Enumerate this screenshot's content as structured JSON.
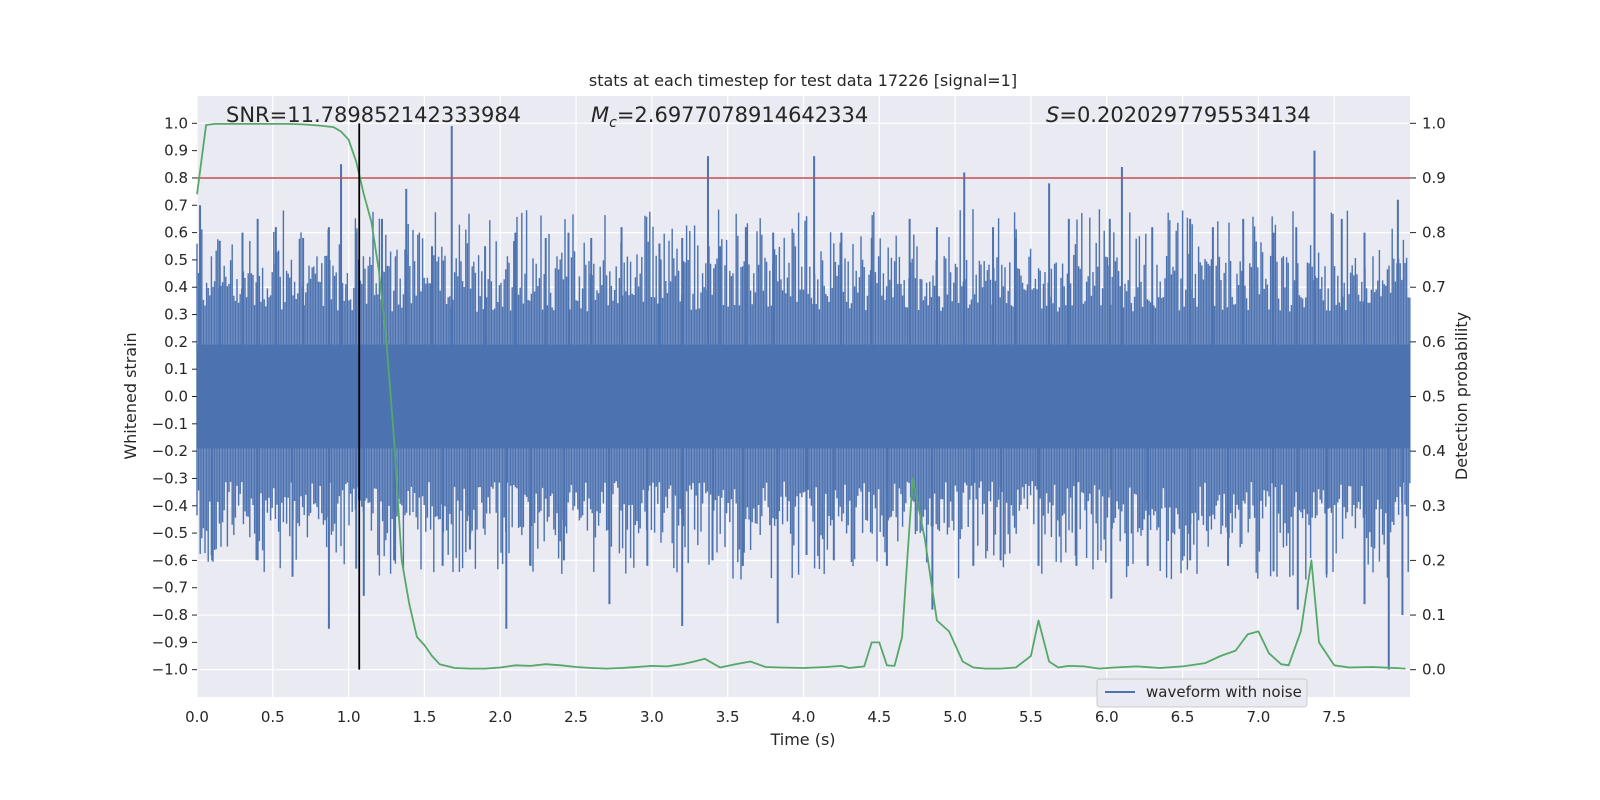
{
  "chart_data": {
    "type": "line",
    "title": "stats at each timestep for test data 17226 [signal=1]",
    "xlabel": "Time (s)",
    "ylabel": "Whitened strain",
    "ylabel_right": "Detection probability",
    "xlim": [
      0.0,
      8.0
    ],
    "ylim": [
      -1.1,
      1.1
    ],
    "ylim_right": [
      -0.05,
      1.05
    ],
    "x_ticks": [
      0.0,
      0.5,
      1.0,
      1.5,
      2.0,
      2.5,
      3.0,
      3.5,
      4.0,
      4.5,
      5.0,
      5.5,
      6.0,
      6.5,
      7.0,
      7.5
    ],
    "y_ticks": [
      -1.0,
      -0.9,
      -0.8,
      -0.7,
      -0.6,
      -0.5,
      -0.4,
      -0.3,
      -0.2,
      -0.1,
      0.0,
      0.1,
      0.2,
      0.3,
      0.4,
      0.5,
      0.6,
      0.7,
      0.8,
      0.9,
      1.0
    ],
    "y_ticks_right": [
      0.0,
      0.1,
      0.2,
      0.3,
      0.4,
      0.5,
      0.6,
      0.7,
      0.8,
      0.9,
      1.0
    ],
    "x_tick_labels": [
      "0.0",
      "0.5",
      "1.0",
      "1.5",
      "2.0",
      "2.5",
      "3.0",
      "3.5",
      "4.0",
      "4.5",
      "5.0",
      "5.5",
      "6.0",
      "6.5",
      "7.0",
      "7.5"
    ],
    "y_tick_labels": [
      "−1.0",
      "−0.9",
      "−0.8",
      "−0.7",
      "−0.6",
      "−0.5",
      "−0.4",
      "−0.3",
      "−0.2",
      "−0.1",
      "0.0",
      "0.1",
      "0.2",
      "0.3",
      "0.4",
      "0.5",
      "0.6",
      "0.7",
      "0.8",
      "0.9",
      "1.0"
    ],
    "y_tick_labels_right": [
      "0.0",
      "0.1",
      "0.2",
      "0.3",
      "0.4",
      "0.5",
      "0.6",
      "0.7",
      "0.8",
      "0.9",
      "1.0"
    ],
    "grid": true,
    "legend_position": "bottom-right",
    "annotations": {
      "snr": "SNR=11.789852142333984",
      "mc_prefix": "M",
      "mc_sub": "c",
      "mc_value": "=2.6977078914642334",
      "s_prefix": "S",
      "s_value": "=0.2020297795534134"
    },
    "waveform": {
      "name": "waveform with noise",
      "color": "#4c72b0",
      "band_upper": 0.19,
      "band_lower": -0.19,
      "peaks_upper": [
        [
          0.02,
          0.7
        ],
        [
          0.15,
          0.57
        ],
        [
          0.3,
          0.6
        ],
        [
          0.4,
          0.65
        ],
        [
          0.52,
          0.62
        ],
        [
          0.7,
          0.58
        ],
        [
          0.87,
          0.62
        ],
        [
          0.95,
          0.85
        ],
        [
          1.05,
          0.6
        ],
        [
          1.22,
          0.65
        ],
        [
          1.38,
          0.76
        ],
        [
          1.55,
          0.55
        ],
        [
          1.68,
          0.99
        ],
        [
          1.9,
          0.55
        ],
        [
          2.1,
          0.6
        ],
        [
          2.3,
          0.58
        ],
        [
          2.45,
          0.6
        ],
        [
          2.6,
          0.58
        ],
        [
          2.8,
          0.62
        ],
        [
          3.05,
          0.56
        ],
        [
          3.2,
          0.58
        ],
        [
          3.37,
          0.88
        ],
        [
          3.45,
          0.55
        ],
        [
          3.62,
          0.62
        ],
        [
          3.8,
          0.6
        ],
        [
          4.07,
          0.88
        ],
        [
          4.25,
          0.6
        ],
        [
          4.45,
          0.58
        ],
        [
          4.7,
          0.65
        ],
        [
          4.88,
          0.62
        ],
        [
          5.06,
          0.82
        ],
        [
          5.25,
          0.62
        ],
        [
          5.4,
          0.58
        ],
        [
          5.62,
          0.78
        ],
        [
          5.75,
          0.65
        ],
        [
          6.02,
          0.65
        ],
        [
          6.1,
          0.84
        ],
        [
          6.3,
          0.62
        ],
        [
          6.55,
          0.65
        ],
        [
          6.7,
          0.62
        ],
        [
          6.9,
          0.65
        ],
        [
          7.1,
          0.6
        ],
        [
          7.25,
          0.62
        ],
        [
          7.37,
          0.9
        ],
        [
          7.55,
          0.65
        ],
        [
          7.7,
          0.6
        ],
        [
          7.92,
          0.72
        ]
      ],
      "peaks_lower": [
        [
          0.1,
          -0.6
        ],
        [
          0.4,
          -0.6
        ],
        [
          0.63,
          -0.66
        ],
        [
          0.87,
          -0.85
        ],
        [
          1.05,
          -0.63
        ],
        [
          1.1,
          -0.73
        ],
        [
          1.3,
          -0.6
        ],
        [
          1.62,
          -0.62
        ],
        [
          1.8,
          -0.56
        ],
        [
          2.04,
          -0.85
        ],
        [
          2.2,
          -0.62
        ],
        [
          2.42,
          -0.6
        ],
        [
          2.72,
          -0.76
        ],
        [
          2.97,
          -0.62
        ],
        [
          3.2,
          -0.84
        ],
        [
          3.4,
          -0.6
        ],
        [
          3.6,
          -0.62
        ],
        [
          3.83,
          -0.83
        ],
        [
          4.02,
          -0.58
        ],
        [
          4.2,
          -0.6
        ],
        [
          4.55,
          -0.62
        ],
        [
          4.85,
          -0.78
        ],
        [
          5.12,
          -0.62
        ],
        [
          5.3,
          -0.6
        ],
        [
          5.55,
          -0.62
        ],
        [
          5.8,
          -0.62
        ],
        [
          6.03,
          -0.74
        ],
        [
          6.27,
          -0.62
        ],
        [
          6.55,
          -0.6
        ],
        [
          6.8,
          -0.62
        ],
        [
          7.1,
          -0.64
        ],
        [
          7.26,
          -0.78
        ],
        [
          7.45,
          -0.65
        ],
        [
          7.7,
          -0.76
        ],
        [
          7.86,
          -1.0
        ],
        [
          7.95,
          -0.8
        ]
      ]
    },
    "probability": {
      "color": "#55a868",
      "x": [
        0.0,
        0.06,
        0.12,
        0.2,
        0.3,
        0.4,
        0.5,
        0.6,
        0.7,
        0.8,
        0.9,
        0.95,
        1.0,
        1.05,
        1.1,
        1.15,
        1.2,
        1.25,
        1.3,
        1.35,
        1.4,
        1.45,
        1.5,
        1.55,
        1.6,
        1.7,
        1.8,
        1.9,
        2.0,
        2.1,
        2.2,
        2.3,
        2.4,
        2.5,
        2.6,
        2.7,
        2.8,
        2.9,
        3.0,
        3.1,
        3.2,
        3.28,
        3.35,
        3.45,
        3.55,
        3.65,
        3.75,
        3.85,
        4.0,
        4.15,
        4.25,
        4.3,
        4.4,
        4.45,
        4.5,
        4.55,
        4.6,
        4.65,
        4.72,
        4.8,
        4.88,
        4.96,
        5.05,
        5.12,
        5.2,
        5.3,
        5.4,
        5.5,
        5.55,
        5.62,
        5.68,
        5.75,
        5.85,
        5.95,
        6.05,
        6.2,
        6.35,
        6.5,
        6.65,
        6.75,
        6.85,
        6.93,
        7.0,
        7.07,
        7.15,
        7.2,
        7.28,
        7.35,
        7.4,
        7.5,
        7.6,
        7.75,
        7.9,
        7.97
      ],
      "y": [
        0.87,
        0.997,
        0.999,
        0.999,
        0.999,
        0.999,
        0.999,
        0.999,
        0.998,
        0.996,
        0.993,
        0.985,
        0.97,
        0.93,
        0.87,
        0.82,
        0.73,
        0.6,
        0.42,
        0.2,
        0.12,
        0.06,
        0.045,
        0.025,
        0.01,
        0.003,
        0.002,
        0.002,
        0.004,
        0.008,
        0.007,
        0.01,
        0.008,
        0.005,
        0.003,
        0.002,
        0.003,
        0.005,
        0.007,
        0.006,
        0.01,
        0.015,
        0.02,
        0.004,
        0.01,
        0.015,
        0.005,
        0.004,
        0.003,
        0.005,
        0.007,
        0.003,
        0.006,
        0.05,
        0.05,
        0.008,
        0.007,
        0.06,
        0.35,
        0.24,
        0.09,
        0.07,
        0.015,
        0.004,
        0.002,
        0.002,
        0.004,
        0.025,
        0.09,
        0.015,
        0.004,
        0.007,
        0.006,
        0.002,
        0.004,
        0.006,
        0.003,
        0.006,
        0.012,
        0.025,
        0.035,
        0.065,
        0.07,
        0.03,
        0.01,
        0.008,
        0.07,
        0.2,
        0.05,
        0.008,
        0.004,
        0.005,
        0.003,
        0.002
      ]
    },
    "threshold_line": {
      "value": 0.9,
      "color": "#c44e52"
    },
    "vertical_marker": {
      "x": 1.07,
      "color": "#000000"
    }
  }
}
